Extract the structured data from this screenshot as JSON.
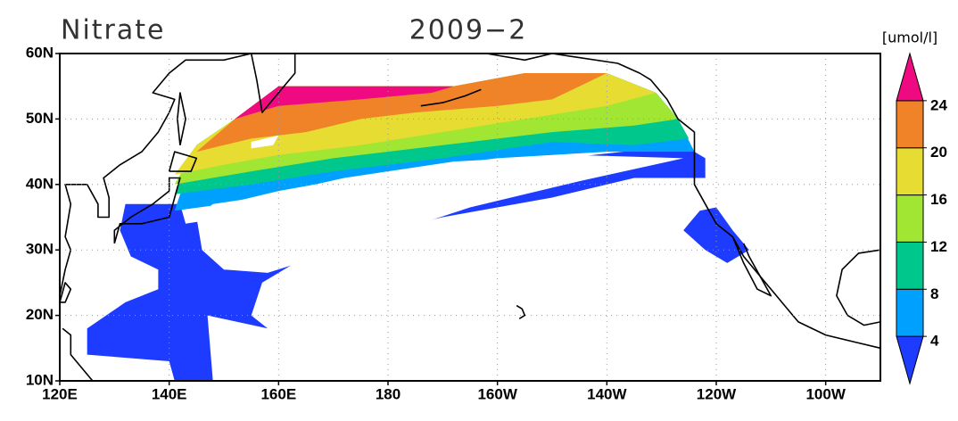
{
  "map": {
    "title": "Nitrate",
    "time": "2009−2",
    "units": "[umol/l]",
    "xlim": [
      120,
      270
    ],
    "ylim": [
      10,
      60
    ],
    "lon_ticks": [
      {
        "value": 120,
        "label": "120E"
      },
      {
        "value": 140,
        "label": "140E"
      },
      {
        "value": 160,
        "label": "160E"
      },
      {
        "value": 180,
        "label": "180"
      },
      {
        "value": 200,
        "label": "160W"
      },
      {
        "value": 220,
        "label": "140W"
      },
      {
        "value": 240,
        "label": "120W"
      },
      {
        "value": 260,
        "label": "100W"
      }
    ],
    "lat_ticks": [
      {
        "value": 10,
        "label": "10N"
      },
      {
        "value": 20,
        "label": "20N"
      },
      {
        "value": 30,
        "label": "30N"
      },
      {
        "value": 40,
        "label": "40N"
      },
      {
        "value": 50,
        "label": "50N"
      },
      {
        "value": 60,
        "label": "60N"
      }
    ],
    "colorbar": {
      "levels": [
        4,
        8,
        12,
        16,
        20,
        24
      ],
      "colors": [
        "#1e3cff",
        "#00a0ff",
        "#00c88c",
        "#a0e632",
        "#e6dc32",
        "#f08228",
        "#f00a82"
      ]
    }
  }
}
